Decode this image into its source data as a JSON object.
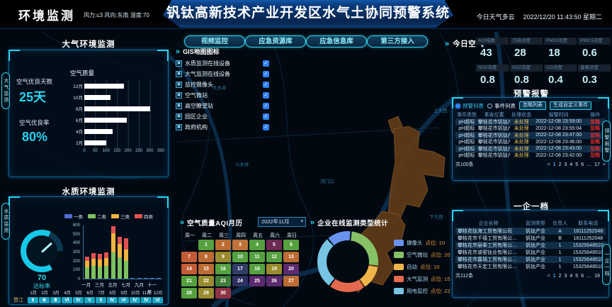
{
  "header": {
    "app_title": "环境监测",
    "weather_info": "风力:≤3  风向:东南  湿度:70",
    "main_title": "钒钛高新技术产业开发区水气土协同预警系统",
    "today_weather": "今日天气多云",
    "datetime": "2022/12/20 11:43:50 星期二"
  },
  "edge_tabs": {
    "left": [
      "大气监测",
      "水质监测"
    ],
    "right": [
      "预警报警",
      "一企一档"
    ]
  },
  "air_panel": {
    "title": "大气环境监测",
    "good_days_label": "空气优良天数",
    "good_days_value": "25天",
    "good_rate_label": "空气优良率",
    "good_rate_value": "80%",
    "chart": {
      "type": "bar",
      "title": "空气质量",
      "categories": [
        "12月",
        "10月",
        "8月",
        "6月",
        "4月",
        "2月"
      ],
      "values": [
        180,
        120,
        300,
        195,
        130,
        100
      ],
      "xticks": [
        0,
        50,
        100,
        150,
        200,
        250,
        300,
        350
      ],
      "xmax": 350,
      "bar_color": "#ffffff"
    }
  },
  "water_panel": {
    "title": "水质环境监测",
    "gauge": {
      "value": "70",
      "label": "达标率",
      "color": "#17c9e8"
    },
    "chart": {
      "type": "bar-stacked",
      "yticks": [
        0,
        100,
        200,
        300,
        400,
        500,
        600
      ],
      "ymax": 600,
      "x_labels": [
        "一月",
        "三月",
        "五月",
        "七月",
        "九月",
        "十一月"
      ],
      "series": [
        {
          "name": "一类",
          "color": "#4f6bd6",
          "values": [
            0,
            0,
            0,
            0,
            0,
            0,
            0,
            6,
            6,
            6,
            6,
            6
          ]
        },
        {
          "name": "二类",
          "color": "#7dc05e",
          "values": [
            130,
            150,
            140,
            150,
            300,
            240,
            200,
            0,
            0,
            0,
            0,
            0
          ]
        },
        {
          "name": "三类",
          "color": "#f0b43e",
          "values": [
            70,
            80,
            80,
            85,
            220,
            155,
            135,
            0,
            0,
            0,
            0,
            0
          ]
        },
        {
          "name": "四类",
          "color": "#e25252",
          "values": [
            50,
            60,
            60,
            65,
            80,
            85,
            125,
            0,
            0,
            0,
            0,
            0
          ]
        }
      ]
    },
    "river_row": {
      "label": "晋江",
      "months": [
        "1月",
        "2月",
        "3月",
        "4月",
        "5月",
        "6月",
        "7月",
        "8月",
        "9月",
        "10月",
        "11月",
        "12月"
      ],
      "values": [
        "Ⅱ",
        "Ⅲ",
        "Ⅲ",
        "Ⅵ",
        "Ⅳ",
        "Ⅴ",
        "Ⅱ",
        "Ⅳ",
        "Ⅵ",
        "Ⅳ",
        "Ⅳ",
        "Ⅵ"
      ]
    }
  },
  "map_area": {
    "buttons": [
      "视频监控",
      "应急资源库",
      "应急信息库",
      "第三方接入"
    ],
    "gis_panel": {
      "title": "GIS地图图标",
      "layers": [
        {
          "label": "水质监测在线设备",
          "checked": true
        },
        {
          "label": "大气监测在线设备",
          "checked": true
        },
        {
          "label": "监控摄像头",
          "checked": true
        },
        {
          "label": "空气微站",
          "checked": true
        },
        {
          "label": "高空瞭望站",
          "checked": true
        },
        {
          "label": "园区企业",
          "checked": true
        },
        {
          "label": "政府机构",
          "checked": true
        }
      ]
    },
    "labels": [
      "大水井",
      "小水井",
      "河门口",
      "上大田",
      "下大田"
    ]
  },
  "today_air": {
    "title": "今日空气",
    "metrics": [
      {
        "label": "AQI指数",
        "value": "43"
      },
      {
        "label": "污染浓度",
        "value": "28"
      },
      {
        "label": "PM10浓度",
        "value": "18"
      },
      {
        "label": "PM2.5浓度",
        "value": "0.6"
      },
      {
        "label": "NO2浓度",
        "value": "0.8"
      },
      {
        "label": "SO2浓度",
        "value": "0.8"
      },
      {
        "label": "CO浓度",
        "value": "0.4"
      },
      {
        "label": "臭氧浓度",
        "value": "0.3"
      }
    ]
  },
  "warning_panel": {
    "title": "预警报警",
    "tabs": [
      {
        "label": "预警列表",
        "selected": true
      },
      {
        "label": "事件列表",
        "selected": false
      }
    ],
    "actions": [
      "忽略列表",
      "生成自定义事件"
    ],
    "columns": [
      "事件类型",
      "事发位置",
      "处理状态",
      "报警时间",
      "操作"
    ],
    "rows": [
      [
        "pH超标",
        "攀枝花市钒钛产…",
        "未处理",
        "2022-12-08 23:59:00",
        "忽略"
      ],
      [
        "pH超标",
        "攀枝花市钒钛产…",
        "未处理",
        "2022-12-08 23:55:04",
        "忽略"
      ],
      [
        "pH超标",
        "攀枝花市钒钛产…",
        "未处理",
        "2022-12-08 23:47:00",
        "忽略"
      ],
      [
        "pH超标",
        "攀枝花市钒钛产…",
        "未处理",
        "2022-12-08 23:46:00",
        "忽略"
      ],
      [
        "pH超标",
        "攀枝花市钒钛产…",
        "未处理",
        "2022-12-08 23:43:00",
        "忽略"
      ],
      [
        "pH超标",
        "攀枝花市钒钛产…",
        "未处理",
        "2022-12-08 23:42:00",
        "忽略"
      ]
    ],
    "total": "共100条",
    "pages": [
      "1",
      "2",
      "3",
      "4",
      "5",
      "6",
      "…",
      "17"
    ],
    "active_page": "1"
  },
  "enterprise_panel": {
    "title": "一企一档",
    "columns": [
      "企业名称",
      "监测类型",
      "负责人",
      "联系电话"
    ],
    "rows": [
      [
        "攀枝花钛海工贸有限公司",
        "钒钛产业",
        "A",
        "18111252048"
      ],
      [
        "攀枝花市千禧工贸有限公…",
        "钒钛产业",
        "B",
        "18111252048"
      ],
      [
        "攀枝花市丽奉工贸有限公…",
        "钒钛产业",
        "1",
        "15325648510"
      ],
      [
        "攀枝花市波密钛业有限公…",
        "钒钛产业",
        "1",
        "15325648510"
      ],
      [
        "攀枝花市露瑙工贸有限公…",
        "钒钛产业",
        "1",
        "15325648510"
      ],
      [
        "攀枝花市天宏工贸有限公…",
        "钒钛产业",
        "1",
        "15325648510"
      ]
    ],
    "total": "共112条",
    "pages": [
      "1",
      "2",
      "3",
      "4",
      "5",
      "6",
      "…",
      "19"
    ],
    "active_page": "1"
  },
  "calendar_panel": {
    "title": "空气质量AQI月历",
    "month_select": "2022年11月",
    "weekdays": [
      "周一",
      "周二",
      "周三",
      "周四",
      "周五",
      "周六",
      "周日"
    ],
    "start_offset": 1,
    "days": [
      {
        "d": "1",
        "c": "#55a13f"
      },
      {
        "d": "2",
        "c": "#bd6b33"
      },
      {
        "d": "3",
        "c": "#c07238"
      },
      {
        "d": "4",
        "c": "#55a13f"
      },
      {
        "d": "5",
        "c": "#6e2a52"
      },
      {
        "d": "6",
        "c": "#55a13f"
      },
      {
        "d": "7",
        "c": "#c35c35"
      },
      {
        "d": "8",
        "c": "#bd6b33"
      },
      {
        "d": "9",
        "c": "#9a8c2e"
      },
      {
        "d": "10",
        "c": "#55a13f"
      },
      {
        "d": "11",
        "c": "#55a13f"
      },
      {
        "d": "12",
        "c": "#55a13f"
      },
      {
        "d": "13",
        "c": "#bd6b33"
      },
      {
        "d": "14",
        "c": "#c35c35"
      },
      {
        "d": "15",
        "c": "#bd6b33"
      },
      {
        "d": "16",
        "c": "#55a13f"
      },
      {
        "d": "17",
        "c": "#313d66"
      },
      {
        "d": "18",
        "c": "#55a13f"
      },
      {
        "d": "19",
        "c": "#9a8c2e"
      },
      {
        "d": "20",
        "c": "#5c2a6e"
      },
      {
        "d": "21",
        "c": "#55a13f"
      },
      {
        "d": "22",
        "c": "#9a8c2e"
      },
      {
        "d": "23",
        "c": "#3f7e37"
      },
      {
        "d": "24",
        "c": "#2e3061"
      },
      {
        "d": "25",
        "c": "#5c2a6e"
      },
      {
        "d": "26",
        "c": "#5c2a6e"
      },
      {
        "d": "27",
        "c": "#bd6b33"
      },
      {
        "d": "28",
        "c": "#55a13f"
      },
      {
        "d": "29",
        "c": "#9a8c2e"
      },
      {
        "d": "30",
        "c": "#8e3344"
      }
    ]
  },
  "donut_panel": {
    "title": "企业在线监测类型统计",
    "type": "donut",
    "segments": [
      {
        "name": "摄像头",
        "count_label": "点位: 10",
        "value": 10,
        "color": "#6a93f0"
      },
      {
        "name": "空气微站",
        "count_label": "点位: 20",
        "value": 20,
        "color": "#86c166"
      },
      {
        "name": "自动",
        "count_label": "点位: 10",
        "value": 10,
        "color": "#efb54b"
      },
      {
        "name": "大气监测",
        "count_label": "点位: 15",
        "value": 15,
        "color": "#e5694e"
      },
      {
        "name": "用电监控",
        "count_label": "点位: 22",
        "value": 22,
        "color": "#77c5e3"
      }
    ]
  }
}
